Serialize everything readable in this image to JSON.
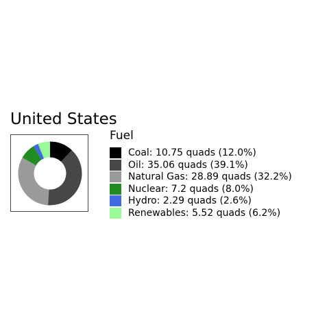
{
  "title": "United States",
  "chart_data": {
    "type": "pie",
    "variant": "donut",
    "legend_title": "Fuel",
    "legend_placement": "right",
    "slices": [
      {
        "name": "Coal",
        "value": 10.75,
        "percent": 12.0,
        "label": "Coal: 10.75 quads (12.0%)",
        "color": "#000000"
      },
      {
        "name": "Oil",
        "value": 35.06,
        "percent": 39.1,
        "label": "Oil: 35.06 quads (39.1%)",
        "color": "#474747"
      },
      {
        "name": "Natural Gas",
        "value": 28.89,
        "percent": 32.2,
        "label": "Natural Gas: 28.89 quads (32.2%)",
        "color": "#9a9a9a"
      },
      {
        "name": "Nuclear",
        "value": 7.2,
        "percent": 8.0,
        "label": "Nuclear: 7.2 quads (8.0%)",
        "color": "#228b22"
      },
      {
        "name": "Hydro",
        "value": 2.29,
        "percent": 2.6,
        "label": "Hydro: 2.29 quads (2.6%)",
        "color": "#4169e1"
      },
      {
        "name": "Renewables",
        "value": 5.52,
        "percent": 6.2,
        "label": "Renewables: 5.52 quads (6.2%)",
        "color": "#98fb98"
      }
    ]
  }
}
